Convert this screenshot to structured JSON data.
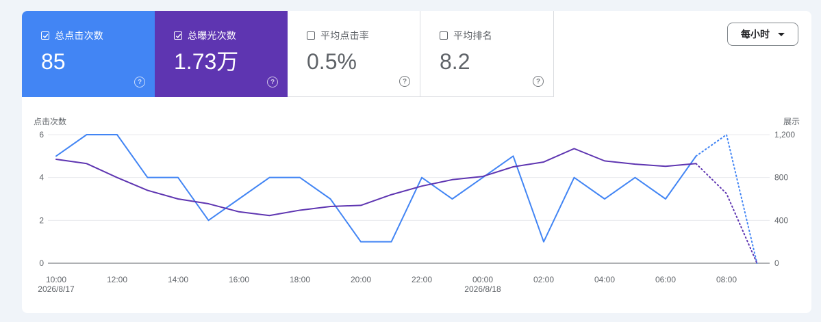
{
  "metrics": [
    {
      "id": "clicks",
      "label": "总点击次数",
      "value": "85",
      "checked": true,
      "color": "#4285f4",
      "help_icon": "help-circle-icon"
    },
    {
      "id": "impressions",
      "label": "总曝光次数",
      "value": "1.73万",
      "checked": true,
      "color": "#5e35b1",
      "help_icon": "help-circle-icon"
    },
    {
      "id": "ctr",
      "label": "平均点击率",
      "value": "0.5%",
      "checked": false,
      "help_icon": "help-circle-icon"
    },
    {
      "id": "position",
      "label": "平均排名",
      "value": "8.2",
      "checked": false,
      "help_icon": "help-circle-icon"
    }
  ],
  "granularity": {
    "label": "每小时",
    "icon": "caret-down-icon"
  },
  "chart_data": {
    "type": "line",
    "left_axis": {
      "label": "点击次数",
      "ticks": [
        "0",
        "2",
        "4",
        "6"
      ],
      "range": [
        0,
        6
      ]
    },
    "right_axis": {
      "label": "展示",
      "ticks": [
        "0",
        "400",
        "800",
        "1,200"
      ],
      "range": [
        0,
        1200
      ]
    },
    "x_tick_labels": [
      {
        "time": "10:00",
        "date": "2026/8/17"
      },
      {
        "time": "12:00",
        "date": ""
      },
      {
        "time": "14:00",
        "date": ""
      },
      {
        "time": "16:00",
        "date": ""
      },
      {
        "time": "18:00",
        "date": ""
      },
      {
        "time": "20:00",
        "date": ""
      },
      {
        "time": "22:00",
        "date": ""
      },
      {
        "time": "00:00",
        "date": "2026/8/18"
      },
      {
        "time": "02:00",
        "date": ""
      },
      {
        "time": "04:00",
        "date": ""
      },
      {
        "time": "06:00",
        "date": ""
      },
      {
        "time": "08:00",
        "date": ""
      }
    ],
    "x": [
      "2026/8/17 10:00",
      "2026/8/17 11:00",
      "2026/8/17 12:00",
      "2026/8/17 13:00",
      "2026/8/17 14:00",
      "2026/8/17 15:00",
      "2026/8/17 16:00",
      "2026/8/17 17:00",
      "2026/8/17 18:00",
      "2026/8/17 19:00",
      "2026/8/17 20:00",
      "2026/8/17 21:00",
      "2026/8/17 22:00",
      "2026/8/17 23:00",
      "2026/8/18 00:00",
      "2026/8/18 01:00",
      "2026/8/18 02:00",
      "2026/8/18 03:00",
      "2026/8/18 04:00",
      "2026/8/18 05:00",
      "2026/8/18 06:00",
      "2026/8/18 07:00",
      "2026/8/18 08:00",
      "2026/8/18 09:00"
    ],
    "series": [
      {
        "metric": "clicks",
        "axis": "left",
        "color": "#4285f4",
        "values": [
          5,
          6,
          6,
          4,
          4,
          2,
          3,
          4,
          4,
          3,
          1,
          1,
          4,
          3,
          4,
          5,
          1,
          4,
          3,
          4,
          3,
          5,
          6,
          0
        ],
        "partial_from_index": 21
      },
      {
        "metric": "impressions",
        "axis": "right",
        "color": "#5e35b1",
        "values": [
          970,
          930,
          800,
          680,
          600,
          555,
          480,
          445,
          495,
          530,
          540,
          640,
          720,
          780,
          810,
          900,
          945,
          1070,
          955,
          925,
          905,
          930,
          650,
          0
        ],
        "partial_from_index": 21
      }
    ],
    "grid": true,
    "legend": "none"
  }
}
